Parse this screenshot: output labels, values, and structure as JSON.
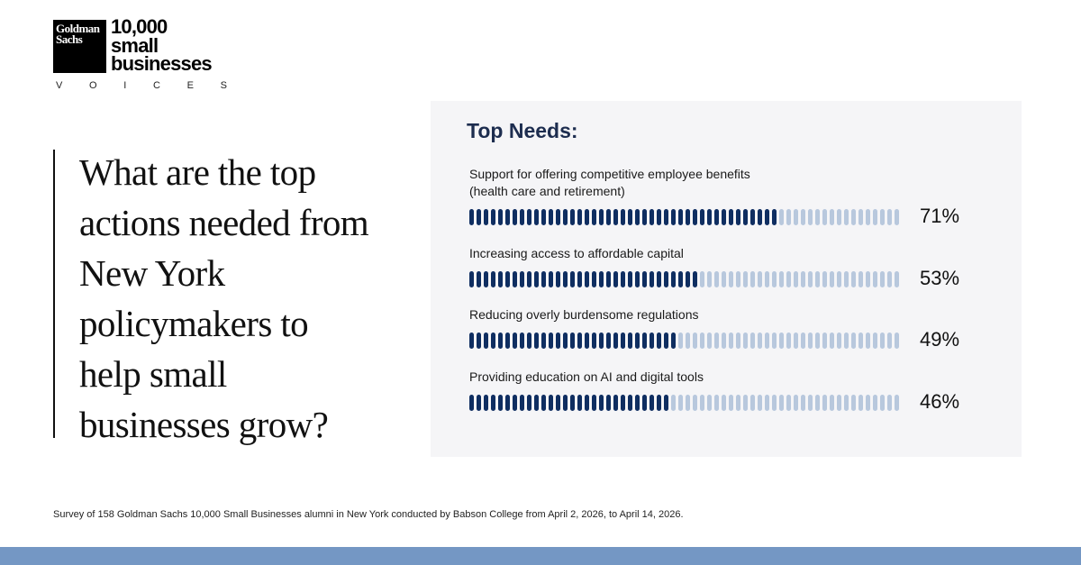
{
  "logo": {
    "box_line1": "Goldman",
    "box_line2": "Sachs",
    "word_line1": "10,000",
    "word_line2": "small",
    "word_line3": "businesses",
    "voices_letters": [
      "V",
      "O",
      "I",
      "C",
      "E",
      "S"
    ]
  },
  "question": "What are the top actions needed from New York policymakers to help small businesses grow?",
  "chart_data": {
    "type": "bar",
    "title": "Top Needs:",
    "categories": [
      "Support for offering competitive employee benefits (health care and retirement)",
      "Increasing access to affordable capital",
      "Reducing overly burdensome regulations",
      "Providing education on AI and digital tools"
    ],
    "label_lines": [
      [
        "Support for offering competitive employee benefits",
        "(health care and retirement)"
      ],
      [
        "Increasing access to affordable capital"
      ],
      [
        "Reducing overly burdensome regulations"
      ],
      [
        "Providing education on AI and digital tools"
      ]
    ],
    "values": [
      71,
      53,
      49,
      46
    ],
    "value_labels": [
      "71%",
      "53%",
      "49%",
      "46%"
    ],
    "unit": "%",
    "ylim": [
      0,
      100
    ],
    "colors": {
      "filled": "#0f2e61",
      "empty": "#b8c8dd"
    }
  },
  "footnote": "Survey of 158 Goldman Sachs 10,000 Small Businesses alumni in New York conducted by Babson College from April 2, 2026, to April 14, 2026.",
  "colors": {
    "panel_background": "#f5f5f7",
    "title": "#1d2d4f",
    "bottom_band": "#7497c4"
  }
}
